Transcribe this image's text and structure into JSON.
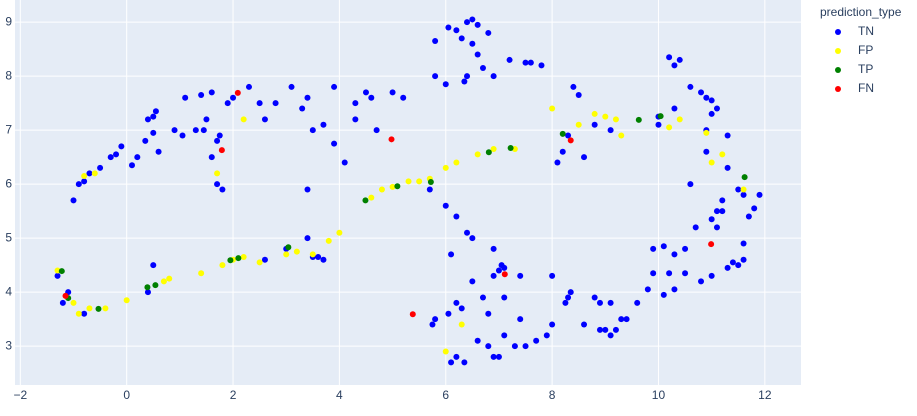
{
  "chart_data": {
    "type": "scatter",
    "legend_title": "prediction_type",
    "legend_position": "right",
    "grid": true,
    "xlim": [
      -2.1,
      12.68
    ],
    "ylim": [
      2.28,
      9.41
    ],
    "xticks": [
      {
        "value": -2,
        "label": "−2"
      },
      0,
      2,
      4,
      6,
      8,
      10,
      12
    ],
    "yticks": [
      3,
      4,
      5,
      6,
      7,
      8,
      9
    ],
    "series": [
      {
        "name": "TN",
        "color": "#0000ff",
        "x": [
          -1.0,
          -0.9,
          -0.8,
          -0.7,
          -0.5,
          -0.3,
          -0.2,
          -0.1,
          0.1,
          0.2,
          0.35,
          0.4,
          0.5,
          0.55,
          0.5,
          0.6,
          0.9,
          1.05,
          1.1,
          1.3,
          1.4,
          1.45,
          1.6,
          1.5,
          1.7,
          1.6,
          1.75,
          1.8,
          1.7,
          1.9,
          2.0,
          2.3,
          2.5,
          2.6,
          2.8,
          3.1,
          3.3,
          3.4,
          3.5,
          3.7,
          3.9,
          4.1,
          4.3,
          4.3,
          4.5,
          4.6,
          4.7,
          5.0,
          5.2,
          3.4,
          3.9,
          3.4,
          3.5,
          3.7,
          3.6,
          3.0,
          2.6,
          0.5,
          0.4,
          -1.2,
          -1.3,
          -0.8,
          -1.1,
          5.8,
          6.05,
          6.2,
          6.3,
          6.4,
          6.5,
          6.6,
          6.8,
          6.5,
          6.6,
          6.7,
          6.9,
          7.2,
          7.5,
          7.8,
          7.6,
          5.8,
          6.0,
          6.4,
          6.35,
          8.4,
          8.5,
          8.2,
          8.1,
          8.3,
          8.6,
          8.8,
          9.1,
          10.2,
          10.4,
          10.3,
          10.6,
          10.8,
          11.0,
          11.1,
          10.9,
          10.9,
          10.0,
          10.3,
          11.0,
          10.0,
          11.3,
          10.9,
          11.3,
          11.5,
          11.6,
          11.9,
          11.8,
          11.2,
          11.1,
          11.0,
          11.7,
          11.5,
          11.6,
          11.3,
          11.4,
          11.0,
          10.8,
          10.5,
          10.3,
          10.2,
          10.1,
          9.9,
          9.8,
          9.9,
          10.1,
          10.3,
          10.5,
          11.1,
          10.7,
          11.6,
          11.2,
          10.6,
          6.2,
          6.4,
          6.5,
          6.0,
          5.7,
          6.1,
          6.3,
          6.2,
          6.05,
          5.8,
          5.75,
          6.2,
          6.1,
          6.35,
          6.6,
          6.9,
          7.1,
          7.3,
          7.0,
          6.8,
          7.5,
          7.7,
          7.9,
          8.0,
          7.4,
          6.8,
          7.0,
          7.05,
          7.1,
          6.9,
          6.7,
          7.1,
          7.4,
          6.9,
          6.5,
          8.0,
          8.3,
          8.35,
          8.25,
          8.6,
          8.9,
          9.0,
          9.1,
          9.2,
          9.3,
          9.4,
          9.6,
          8.8,
          9.1,
          8.9
        ],
        "values": [
          5.7,
          6.0,
          6.05,
          6.2,
          6.3,
          6.5,
          6.55,
          6.7,
          6.35,
          6.5,
          6.8,
          7.2,
          7.25,
          7.35,
          6.95,
          6.6,
          7.0,
          6.9,
          7.6,
          7.0,
          7.65,
          7.0,
          7.7,
          7.2,
          6.8,
          6.5,
          6.9,
          5.9,
          6.0,
          7.5,
          7.6,
          7.8,
          7.5,
          7.2,
          7.5,
          7.8,
          7.4,
          7.6,
          7.0,
          7.1,
          7.8,
          6.4,
          7.2,
          7.5,
          7.7,
          7.6,
          7.0,
          7.7,
          7.6,
          5.9,
          6.75,
          5.0,
          4.65,
          4.6,
          4.65,
          4.8,
          4.6,
          4.5,
          4.0,
          3.8,
          4.3,
          3.6,
          4.0,
          8.65,
          8.9,
          8.85,
          8.7,
          9.0,
          9.05,
          8.95,
          8.8,
          8.6,
          8.4,
          8.15,
          8.0,
          8.3,
          8.25,
          8.2,
          8.25,
          8.0,
          7.85,
          8.0,
          7.9,
          7.8,
          7.65,
          6.6,
          6.4,
          6.9,
          6.5,
          7.1,
          7.0,
          8.35,
          8.3,
          8.2,
          7.8,
          7.7,
          7.55,
          7.4,
          7.6,
          7.0,
          7.25,
          7.4,
          7.3,
          7.1,
          6.9,
          6.6,
          6.3,
          5.9,
          5.8,
          5.8,
          5.55,
          5.7,
          5.5,
          5.35,
          5.4,
          4.5,
          4.6,
          4.45,
          4.55,
          4.3,
          4.2,
          4.35,
          4.05,
          4.35,
          3.95,
          4.35,
          4.05,
          4.8,
          4.85,
          4.7,
          4.8,
          5.2,
          5.2,
          4.9,
          5.5,
          6.0,
          5.4,
          5.1,
          5.0,
          5.6,
          5.9,
          4.7,
          3.7,
          3.8,
          3.6,
          3.5,
          3.4,
          2.8,
          2.7,
          2.7,
          3.1,
          2.8,
          3.2,
          3.0,
          2.8,
          3.0,
          3.0,
          3.1,
          3.2,
          3.4,
          3.5,
          3.6,
          4.4,
          4.5,
          4.45,
          4.8,
          3.9,
          3.9,
          4.3,
          4.3,
          4.2,
          4.3,
          3.9,
          4.0,
          3.8,
          3.4,
          3.3,
          3.3,
          3.2,
          3.3,
          3.5,
          3.5,
          3.8,
          3.9,
          3.8,
          3.8
        ]
      },
      {
        "name": "FP",
        "color": "#ffff00",
        "x": [
          -1.3,
          -1.0,
          -0.9,
          -0.7,
          -0.4,
          0.0,
          0.7,
          0.8,
          1.4,
          1.8,
          2.0,
          2.2,
          2.5,
          3.0,
          3.2,
          3.5,
          3.8,
          4.0,
          4.6,
          4.8,
          5.0,
          5.3,
          5.5,
          5.7,
          6.0,
          6.2,
          6.6,
          6.9,
          7.3,
          8.0,
          8.5,
          8.8,
          9.2,
          9.0,
          10.2,
          10.4,
          10.9,
          11.0,
          11.2,
          11.6,
          -0.8,
          -0.6,
          1.7,
          2.2,
          6.3,
          6.0,
          9.3
        ],
        "values": [
          4.4,
          3.8,
          3.6,
          3.7,
          3.7,
          3.85,
          4.2,
          4.25,
          4.35,
          4.5,
          4.6,
          4.65,
          4.55,
          4.7,
          4.75,
          4.7,
          4.95,
          5.1,
          5.75,
          5.9,
          5.95,
          6.05,
          6.05,
          6.1,
          6.3,
          6.4,
          6.55,
          6.65,
          6.65,
          7.4,
          7.1,
          7.3,
          7.2,
          7.25,
          7.05,
          7.2,
          6.95,
          6.4,
          6.55,
          5.9,
          6.15,
          6.2,
          6.2,
          7.2,
          3.4,
          2.9,
          6.9
        ]
      },
      {
        "name": "TP",
        "color": "#008000",
        "x": [
          -1.22,
          -0.53,
          0.39,
          0.54,
          1.95,
          2.1,
          3.04,
          4.49,
          5.09,
          5.72,
          6.81,
          7.22,
          8.2,
          9.63,
          10.04,
          11.62,
          -1.1
        ],
        "values": [
          4.39,
          3.69,
          4.09,
          4.13,
          4.59,
          4.63,
          4.83,
          5.7,
          5.96,
          6.04,
          6.59,
          6.67,
          6.93,
          7.19,
          7.26,
          6.13,
          3.89
        ]
      },
      {
        "name": "FN",
        "color": "#ff0000",
        "x": [
          2.09,
          1.79,
          4.98,
          8.35,
          10.99,
          7.11,
          5.38,
          -1.15
        ],
        "values": [
          7.69,
          6.63,
          6.83,
          6.81,
          4.89,
          4.33,
          3.59,
          3.93
        ]
      }
    ]
  }
}
